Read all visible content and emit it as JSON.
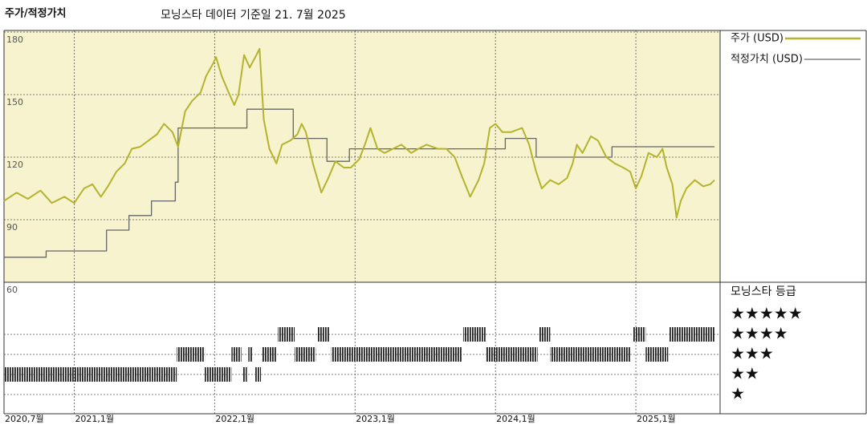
{
  "chart_data": {
    "type": "line",
    "title": "주가/적정가치",
    "subtitle": "모닝스타 데이터 기준일 21. 7월 2025",
    "xlim": [
      2020.5,
      2025.6
    ],
    "xticks": [
      {
        "value": 2020.5,
        "label": "2020,7월"
      },
      {
        "value": 2021.0,
        "label": "2021,1월"
      },
      {
        "value": 2022.0,
        "label": "2022,1월"
      },
      {
        "value": 2023.0,
        "label": "2023,1월"
      },
      {
        "value": 2024.0,
        "label": "2024,1월"
      },
      {
        "value": 2025.0,
        "label": "2025,1월"
      }
    ],
    "ylim": [
      60,
      180
    ],
    "yticks": [
      60,
      90,
      120,
      150,
      180
    ],
    "grid": true,
    "background": "#f7f3cf",
    "series": [
      {
        "name": "주가 (USD)",
        "color": "#b3b32d",
        "x": [
          2020.5,
          2020.59,
          2020.67,
          2020.76,
          2020.84,
          2020.93,
          2021.0,
          2021.07,
          2021.13,
          2021.19,
          2021.24,
          2021.3,
          2021.36,
          2021.41,
          2021.47,
          2021.53,
          2021.59,
          2021.64,
          2021.7,
          2021.74,
          2021.79,
          2021.84,
          2021.9,
          2021.94,
          2021.99,
          2022.01,
          2022.05,
          2022.1,
          2022.14,
          2022.17,
          2022.21,
          2022.25,
          2022.29,
          2022.32,
          2022.35,
          2022.39,
          2022.44,
          2022.48,
          2022.54,
          2022.59,
          2022.62,
          2022.65,
          2022.7,
          2022.76,
          2022.81,
          2022.86,
          2022.92,
          2022.97,
          2023.03,
          2023.07,
          2023.11,
          2023.16,
          2023.21,
          2023.27,
          2023.33,
          2023.4,
          2023.45,
          2023.51,
          2023.59,
          2023.65,
          2023.71,
          2023.76,
          2023.82,
          2023.88,
          2023.92,
          2023.96,
          2024.0,
          2024.05,
          2024.11,
          2024.19,
          2024.24,
          2024.29,
          2024.33,
          2024.39,
          2024.45,
          2024.51,
          2024.55,
          2024.58,
          2024.62,
          2024.68,
          2024.73,
          2024.79,
          2024.85,
          2024.91,
          2024.96,
          2025.0,
          2025.04,
          2025.09,
          2025.15,
          2025.19,
          2025.22,
          2025.26,
          2025.29,
          2025.32,
          2025.36,
          2025.42,
          2025.48,
          2025.53,
          2025.56
        ],
        "values": [
          99,
          103,
          100,
          104,
          98,
          101,
          98,
          105,
          107,
          101,
          106,
          113,
          117,
          124,
          125,
          128,
          131,
          136,
          132,
          125,
          142,
          147,
          151,
          159,
          165,
          168,
          159,
          151,
          145,
          150,
          169,
          163,
          168,
          172,
          138,
          124,
          117,
          126,
          128,
          131,
          136,
          132,
          117,
          103,
          110,
          118,
          115,
          115,
          119,
          126,
          134,
          124,
          122,
          124,
          126,
          122,
          124,
          126,
          124,
          124,
          120,
          111,
          101,
          109,
          117,
          134,
          136,
          132,
          132,
          134,
          126,
          113,
          105,
          109,
          107,
          110,
          117,
          126,
          122,
          130,
          128,
          120,
          117,
          115,
          113,
          105,
          111,
          122,
          120,
          124,
          115,
          107,
          91,
          99,
          105,
          109,
          106,
          107,
          109
        ]
      },
      {
        "name": "적정가치 (USD)",
        "color": "#666666",
        "step": "after",
        "x": [
          2020.5,
          2020.8,
          2021.23,
          2021.39,
          2021.55,
          2021.72,
          2021.74,
          2022.23,
          2022.56,
          2022.8,
          2022.96,
          2024.07,
          2024.29,
          2024.83,
          2025.56
        ],
        "values": [
          72,
          75,
          85,
          92,
          99,
          108,
          134,
          143,
          129,
          118,
          124,
          129,
          120,
          125,
          125
        ]
      }
    ],
    "rating_title": "모닝스타 등급",
    "rating_ticks": [
      {
        "value": 5,
        "label": "★★★★★"
      },
      {
        "value": 4,
        "label": "★★★★"
      },
      {
        "value": 3,
        "label": "★★★"
      },
      {
        "value": 2,
        "label": "★★"
      },
      {
        "value": 1,
        "label": "★"
      }
    ],
    "ratings": [
      {
        "start": 2020.5,
        "end": 2021.73,
        "stars": 2
      },
      {
        "start": 2021.73,
        "end": 2021.93,
        "stars": 3
      },
      {
        "start": 2021.93,
        "end": 2022.12,
        "stars": 2
      },
      {
        "start": 2022.12,
        "end": 2022.19,
        "stars": 3
      },
      {
        "start": 2022.2,
        "end": 2022.23,
        "stars": 2
      },
      {
        "start": 2022.24,
        "end": 2022.27,
        "stars": 3
      },
      {
        "start": 2022.29,
        "end": 2022.33,
        "stars": 2
      },
      {
        "start": 2022.34,
        "end": 2022.44,
        "stars": 3
      },
      {
        "start": 2022.45,
        "end": 2022.57,
        "stars": 4
      },
      {
        "start": 2022.57,
        "end": 2022.72,
        "stars": 3
      },
      {
        "start": 2022.73,
        "end": 2022.82,
        "stars": 4
      },
      {
        "start": 2022.83,
        "end": 2023.76,
        "stars": 3
      },
      {
        "start": 2023.77,
        "end": 2023.93,
        "stars": 4
      },
      {
        "start": 2023.93,
        "end": 2024.3,
        "stars": 3
      },
      {
        "start": 2024.31,
        "end": 2024.39,
        "stars": 4
      },
      {
        "start": 2024.39,
        "end": 2024.96,
        "stars": 3
      },
      {
        "start": 2024.98,
        "end": 2025.07,
        "stars": 4
      },
      {
        "start": 2025.07,
        "end": 2025.23,
        "stars": 3
      },
      {
        "start": 2025.24,
        "end": 2025.56,
        "stars": 4
      }
    ]
  }
}
